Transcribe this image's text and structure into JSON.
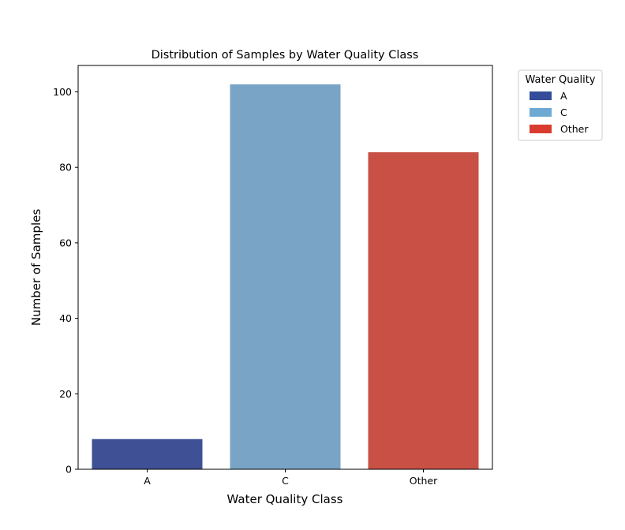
{
  "chart_data": {
    "type": "bar",
    "title": "Distribution of Samples by Water Quality Class",
    "xlabel": "Water Quality Class",
    "ylabel": "Number of Samples",
    "categories": [
      "A",
      "C",
      "Other"
    ],
    "values": [
      8,
      102,
      84
    ],
    "colors": [
      "#3f5194",
      "#79a4c5",
      "#c85045"
    ],
    "ylim": [
      0,
      107
    ],
    "yticks": [
      0,
      20,
      40,
      60,
      80,
      100
    ],
    "grid": false,
    "legend": {
      "title": "Water Quality",
      "placement": "outside-top-right",
      "entries": [
        {
          "label": "A",
          "color": "#344c99"
        },
        {
          "label": "C",
          "color": "#6ea9d4"
        },
        {
          "label": "Other",
          "color": "#d93c2f"
        }
      ]
    }
  }
}
